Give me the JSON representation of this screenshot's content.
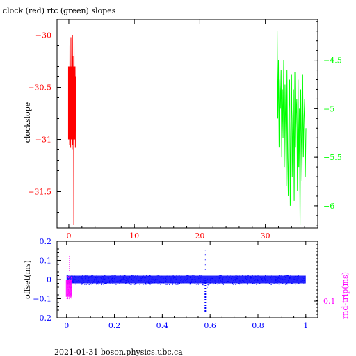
{
  "title": "clock (red) rtc (green) slopes",
  "footer": "2021-01-31 boson.physics.ubc.ca",
  "colors": {
    "clock": "#ff0000",
    "rtc": "#00ff00",
    "offset": "#0000ff",
    "rnd_trip": "#ff00ff",
    "axis": "#000000"
  },
  "chart_data": [
    {
      "type": "line",
      "title": "clock (red) rtc (green) slopes",
      "ylabel": "clockslope",
      "xlim": [
        -1.8,
        38
      ],
      "ylim": [
        -31.85,
        -29.85
      ],
      "y2lim": [
        -6.23,
        -4.08
      ],
      "xticks": [
        0,
        10,
        20,
        30
      ],
      "yticks": [
        "-30",
        "-30.5",
        "-31",
        "-31.5"
      ],
      "y2ticks": [
        "-4.5",
        "-5",
        "-5.5",
        "-6"
      ],
      "series": [
        {
          "name": "clock",
          "axis": "left",
          "x": [
            0.0,
            0.04,
            0.08,
            0.12,
            0.16,
            0.2,
            0.24,
            0.28,
            0.32,
            0.36,
            0.4,
            0.44,
            0.48,
            0.52,
            0.56,
            0.6,
            0.64,
            0.68,
            0.72,
            0.76,
            0.8,
            0.84,
            0.88,
            0.92,
            0.96,
            1.0,
            1.05,
            1.1
          ],
          "y": [
            -30.35,
            -30.98,
            -30.4,
            -31.05,
            -30.1,
            -30.95,
            -30.5,
            -31.08,
            -30.02,
            -31.0,
            -30.3,
            -30.9,
            -30.45,
            -31.1,
            -30.0,
            -31.05,
            -30.2,
            -30.88,
            -30.42,
            -31.82,
            -30.05,
            -31.0,
            -30.35,
            -30.95,
            -30.3,
            -31.08,
            -30.4,
            -30.9
          ]
        },
        {
          "name": "rtc",
          "axis": "right",
          "x": [
            31.8,
            31.9,
            32.0,
            32.1,
            32.2,
            32.3,
            32.4,
            32.5,
            32.6,
            32.7,
            32.8,
            32.9,
            33.0,
            33.1,
            33.2,
            33.3,
            33.4,
            33.5,
            33.6,
            33.7,
            33.8,
            33.9,
            34.0,
            34.1,
            34.2,
            34.3,
            34.4,
            34.5,
            34.6,
            34.7,
            34.8,
            34.9,
            35.0,
            35.1,
            35.2,
            35.3,
            35.4,
            35.5,
            35.6,
            35.7,
            35.8,
            35.9,
            36.0,
            36.1,
            36.2
          ],
          "y": [
            -4.2,
            -5.1,
            -4.5,
            -5.4,
            -4.7,
            -5.0,
            -4.6,
            -5.5,
            -4.8,
            -5.3,
            -4.5,
            -5.6,
            -4.75,
            -5.2,
            -5.8,
            -4.6,
            -5.5,
            -5.9,
            -5.0,
            -4.7,
            -6.0,
            -5.2,
            -4.65,
            -5.7,
            -5.1,
            -4.8,
            -5.95,
            -4.62,
            -5.4,
            -5.05,
            -4.9,
            -5.85,
            -4.7,
            -5.6,
            -5.0,
            -6.2,
            -4.8,
            -5.3,
            -5.75,
            -4.65,
            -5.5,
            -5.1,
            -4.9,
            -5.7,
            -5.2
          ]
        }
      ]
    },
    {
      "type": "scatter",
      "ylabel": "offset(ms)",
      "y2label": "rnd-trip(ms)",
      "xlim": [
        -0.04,
        1.05
      ],
      "ylim": [
        -0.2,
        0.2
      ],
      "xticks": [
        "0",
        "0.2",
        "0.4",
        "0.6",
        "0.8",
        "1"
      ],
      "yticks": [
        "0.2",
        "0.1",
        "0",
        "-0.1",
        "-0.2"
      ],
      "y2ticks": [
        "0.1"
      ],
      "series": [
        {
          "name": "offset",
          "band_center": 0.0,
          "band_halfwidth": 0.025,
          "x_range": [
            0.0,
            1.0
          ],
          "dip_x": 0.58,
          "dip_min": -0.17,
          "spike_x": 0.58,
          "spike_max": 0.17
        },
        {
          "name": "rnd-trip",
          "x_range": [
            0.0,
            0.02
          ],
          "y_range": [
            -0.1,
            0.17
          ]
        }
      ]
    }
  ]
}
